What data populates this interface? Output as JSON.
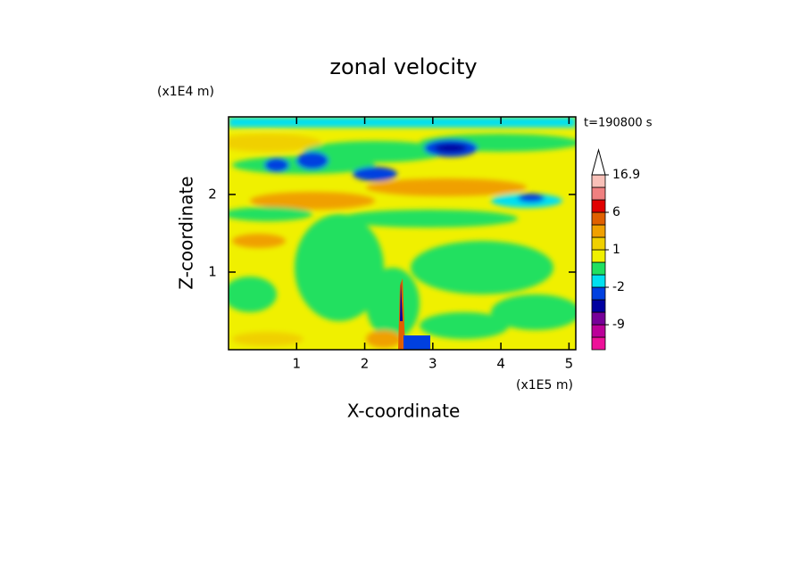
{
  "chart_data": {
    "type": "contour",
    "title": "zonal velocity",
    "xlabel": "X-coordinate",
    "ylabel": "Z-coordinate",
    "x_multiplier": "(x1E5 m)",
    "y_multiplier": "(x1E4 m)",
    "annotation": "t=190800 s",
    "xlim": [
      0,
      5.1
    ],
    "xticks": [
      1,
      2,
      3,
      4,
      5
    ],
    "ylim": [
      0,
      3
    ],
    "yticks": [
      1,
      2
    ],
    "colorbar": {
      "levels": [
        -15,
        -12,
        -9,
        -6,
        -4,
        -2,
        -1,
        0,
        1,
        2,
        4,
        6,
        9,
        12,
        16.9
      ],
      "colors": [
        "#ee1199",
        "#bb0099",
        "#770099",
        "#0000a0",
        "#0040e0",
        "#00e0f0",
        "#20e060",
        "#f0f000",
        "#f0d000",
        "#f0a000",
        "#e06000",
        "#e00000",
        "#f08080",
        "#f8c0b8"
      ],
      "ticks": [
        16.9,
        6,
        1,
        -2,
        -9
      ]
    }
  }
}
